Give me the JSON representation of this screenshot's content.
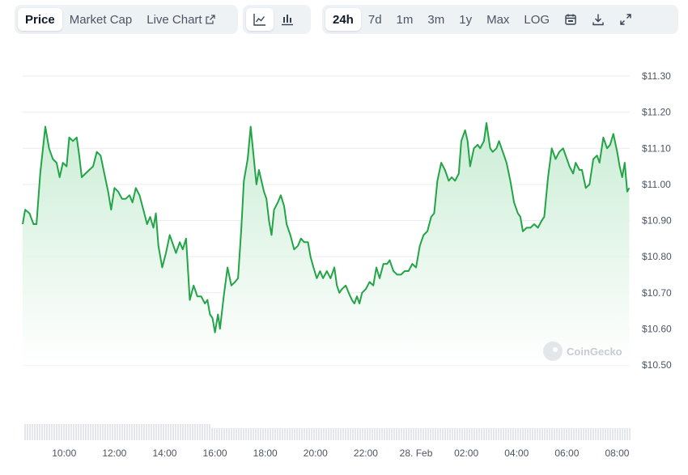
{
  "toolbar": {
    "views": [
      {
        "label": "Price",
        "active": true
      },
      {
        "label": "Market Cap",
        "active": false
      },
      {
        "label": "Live Chart",
        "active": false
      }
    ],
    "chart_types": [
      {
        "icon": "line-chart-icon",
        "active": true
      },
      {
        "icon": "candlestick-chart-icon",
        "active": false
      }
    ],
    "ranges": [
      {
        "label": "24h",
        "active": true
      },
      {
        "label": "7d",
        "active": false
      },
      {
        "label": "1m",
        "active": false
      },
      {
        "label": "3m",
        "active": false
      },
      {
        "label": "1y",
        "active": false
      },
      {
        "label": "Max",
        "active": false
      },
      {
        "label": "LOG",
        "active": false
      }
    ],
    "actions": [
      "calendar-icon",
      "download-icon",
      "expand-icon"
    ]
  },
  "watermark": "CoinGecko",
  "colors": {
    "line": "#22a447",
    "fill_top": "#c8ecd3",
    "fill_bottom": "#ffffff",
    "volume": "#e3e6ea",
    "grid": "#e9ecef"
  },
  "chart_data": {
    "type": "area",
    "y_ticks": [
      "$11.30",
      "$11.20",
      "$11.10",
      "$11.00",
      "$10.90",
      "$10.80",
      "$10.70",
      "$10.60",
      "$10.50"
    ],
    "y_tick_values": [
      11.3,
      11.2,
      11.1,
      11.0,
      10.9,
      10.8,
      10.7,
      10.6,
      10.5
    ],
    "ylim": [
      10.5,
      11.3
    ],
    "x_ticks": [
      "10:00",
      "12:00",
      "14:00",
      "16:00",
      "18:00",
      "20:00",
      "22:00",
      "28. Feb",
      "02:00",
      "04:00",
      "06:00",
      "08:00"
    ],
    "x_tick_hours": [
      10,
      12,
      14,
      16,
      18,
      20,
      22,
      24,
      26,
      28,
      30,
      32
    ],
    "xlim": [
      8.35,
      32.5
    ],
    "series": [
      {
        "points": [
          [
            8.35,
            10.89
          ],
          [
            8.45,
            10.93
          ],
          [
            8.62,
            10.92
          ],
          [
            8.78,
            10.89
          ],
          [
            8.9,
            10.89
          ],
          [
            9.05,
            11.03
          ],
          [
            9.25,
            11.16
          ],
          [
            9.4,
            11.1
          ],
          [
            9.55,
            11.07
          ],
          [
            9.7,
            11.06
          ],
          [
            9.82,
            11.02
          ],
          [
            9.95,
            11.06
          ],
          [
            10.1,
            11.05
          ],
          [
            10.2,
            11.13
          ],
          [
            10.35,
            11.12
          ],
          [
            10.5,
            11.13
          ],
          [
            10.6,
            11.08
          ],
          [
            10.7,
            11.02
          ],
          [
            10.85,
            11.03
          ],
          [
            11.0,
            11.04
          ],
          [
            11.15,
            11.05
          ],
          [
            11.3,
            11.09
          ],
          [
            11.45,
            11.08
          ],
          [
            11.6,
            11.03
          ],
          [
            11.75,
            10.98
          ],
          [
            11.87,
            10.93
          ],
          [
            12.0,
            10.99
          ],
          [
            12.15,
            10.98
          ],
          [
            12.3,
            10.96
          ],
          [
            12.45,
            10.96
          ],
          [
            12.6,
            10.97
          ],
          [
            12.72,
            10.95
          ],
          [
            12.85,
            10.99
          ],
          [
            13.0,
            10.97
          ],
          [
            13.15,
            10.93
          ],
          [
            13.3,
            10.89
          ],
          [
            13.42,
            10.91
          ],
          [
            13.55,
            10.88
          ],
          [
            13.65,
            10.92
          ],
          [
            13.75,
            10.83
          ],
          [
            13.9,
            10.77
          ],
          [
            14.05,
            10.81
          ],
          [
            14.2,
            10.86
          ],
          [
            14.35,
            10.83
          ],
          [
            14.45,
            10.81
          ],
          [
            14.6,
            10.84
          ],
          [
            14.72,
            10.82
          ],
          [
            14.85,
            10.85
          ],
          [
            15.0,
            10.68
          ],
          [
            15.15,
            10.72
          ],
          [
            15.3,
            10.69
          ],
          [
            15.45,
            10.69
          ],
          [
            15.6,
            10.67
          ],
          [
            15.7,
            10.68
          ],
          [
            15.8,
            10.64
          ],
          [
            15.9,
            10.63
          ],
          [
            16.0,
            10.59
          ],
          [
            16.12,
            10.64
          ],
          [
            16.2,
            10.6
          ],
          [
            16.35,
            10.69
          ],
          [
            16.5,
            10.77
          ],
          [
            16.65,
            10.72
          ],
          [
            16.8,
            10.73
          ],
          [
            16.92,
            10.74
          ],
          [
            17.05,
            10.88
          ],
          [
            17.15,
            11.01
          ],
          [
            17.3,
            11.07
          ],
          [
            17.42,
            11.16
          ],
          [
            17.55,
            11.07
          ],
          [
            17.65,
            11.0
          ],
          [
            17.75,
            11.04
          ],
          [
            17.85,
            11.01
          ],
          [
            17.95,
            10.98
          ],
          [
            18.05,
            10.96
          ],
          [
            18.15,
            10.9
          ],
          [
            18.25,
            10.86
          ],
          [
            18.35,
            10.93
          ],
          [
            18.5,
            10.95
          ],
          [
            18.62,
            10.97
          ],
          [
            18.75,
            10.94
          ],
          [
            18.85,
            10.89
          ],
          [
            19.0,
            10.86
          ],
          [
            19.15,
            10.82
          ],
          [
            19.3,
            10.83
          ],
          [
            19.42,
            10.85
          ],
          [
            19.55,
            10.84
          ],
          [
            19.7,
            10.84
          ],
          [
            19.8,
            10.8
          ],
          [
            19.92,
            10.77
          ],
          [
            20.05,
            10.74
          ],
          [
            20.18,
            10.76
          ],
          [
            20.3,
            10.74
          ],
          [
            20.45,
            10.76
          ],
          [
            20.6,
            10.74
          ],
          [
            20.75,
            10.77
          ],
          [
            20.85,
            10.72
          ],
          [
            20.95,
            10.7
          ],
          [
            21.05,
            10.71
          ],
          [
            21.2,
            10.72
          ],
          [
            21.32,
            10.7
          ],
          [
            21.45,
            10.68
          ],
          [
            21.55,
            10.67
          ],
          [
            21.65,
            10.69
          ],
          [
            21.75,
            10.67
          ],
          [
            21.85,
            10.7
          ],
          [
            22.0,
            10.71
          ],
          [
            22.15,
            10.73
          ],
          [
            22.3,
            10.72
          ],
          [
            22.42,
            10.77
          ],
          [
            22.55,
            10.74
          ],
          [
            22.7,
            10.78
          ],
          [
            22.85,
            10.78
          ],
          [
            22.95,
            10.79
          ],
          [
            23.1,
            10.76
          ],
          [
            23.25,
            10.75
          ],
          [
            23.4,
            10.75
          ],
          [
            23.55,
            10.76
          ],
          [
            23.7,
            10.76
          ],
          [
            23.85,
            10.78
          ],
          [
            24.0,
            10.77
          ],
          [
            24.15,
            10.83
          ],
          [
            24.3,
            10.86
          ],
          [
            24.45,
            10.87
          ],
          [
            24.6,
            10.91
          ],
          [
            24.72,
            10.92
          ],
          [
            24.85,
            11.01
          ],
          [
            25.0,
            11.06
          ],
          [
            25.15,
            11.04
          ],
          [
            25.3,
            11.01
          ],
          [
            25.42,
            11.02
          ],
          [
            25.55,
            11.01
          ],
          [
            25.7,
            11.03
          ],
          [
            25.8,
            11.12
          ],
          [
            25.95,
            11.15
          ],
          [
            26.05,
            11.12
          ],
          [
            26.15,
            11.05
          ],
          [
            26.3,
            11.1
          ],
          [
            26.45,
            11.11
          ],
          [
            26.55,
            11.1
          ],
          [
            26.7,
            11.12
          ],
          [
            26.8,
            11.17
          ],
          [
            26.95,
            11.1
          ],
          [
            27.05,
            11.09
          ],
          [
            27.2,
            11.1
          ],
          [
            27.3,
            11.12
          ],
          [
            27.45,
            11.09
          ],
          [
            27.6,
            11.06
          ],
          [
            27.75,
            11.01
          ],
          [
            27.9,
            10.95
          ],
          [
            28.05,
            10.92
          ],
          [
            28.15,
            10.91
          ],
          [
            28.25,
            10.87
          ],
          [
            28.4,
            10.88
          ],
          [
            28.55,
            10.88
          ],
          [
            28.7,
            10.89
          ],
          [
            28.85,
            10.88
          ],
          [
            29.0,
            10.9
          ],
          [
            29.1,
            10.91
          ],
          [
            29.25,
            11.02
          ],
          [
            29.4,
            11.1
          ],
          [
            29.55,
            11.07
          ],
          [
            29.7,
            11.09
          ],
          [
            29.85,
            11.1
          ],
          [
            30.0,
            11.07
          ],
          [
            30.1,
            11.05
          ],
          [
            30.25,
            11.03
          ],
          [
            30.35,
            11.06
          ],
          [
            30.5,
            11.04
          ],
          [
            30.6,
            11.04
          ],
          [
            30.75,
            10.99
          ],
          [
            30.9,
            11.0
          ],
          [
            31.05,
            11.07
          ],
          [
            31.2,
            11.08
          ],
          [
            31.3,
            11.06
          ],
          [
            31.45,
            11.13
          ],
          [
            31.6,
            11.1
          ],
          [
            31.72,
            11.11
          ],
          [
            31.85,
            11.14
          ],
          [
            32.0,
            11.09
          ],
          [
            32.1,
            11.05
          ],
          [
            32.2,
            11.02
          ],
          [
            32.3,
            11.06
          ],
          [
            32.4,
            10.98
          ],
          [
            32.48,
            10.99
          ]
        ]
      }
    ],
    "volume": "flat-light-bars",
    "grid": true
  }
}
